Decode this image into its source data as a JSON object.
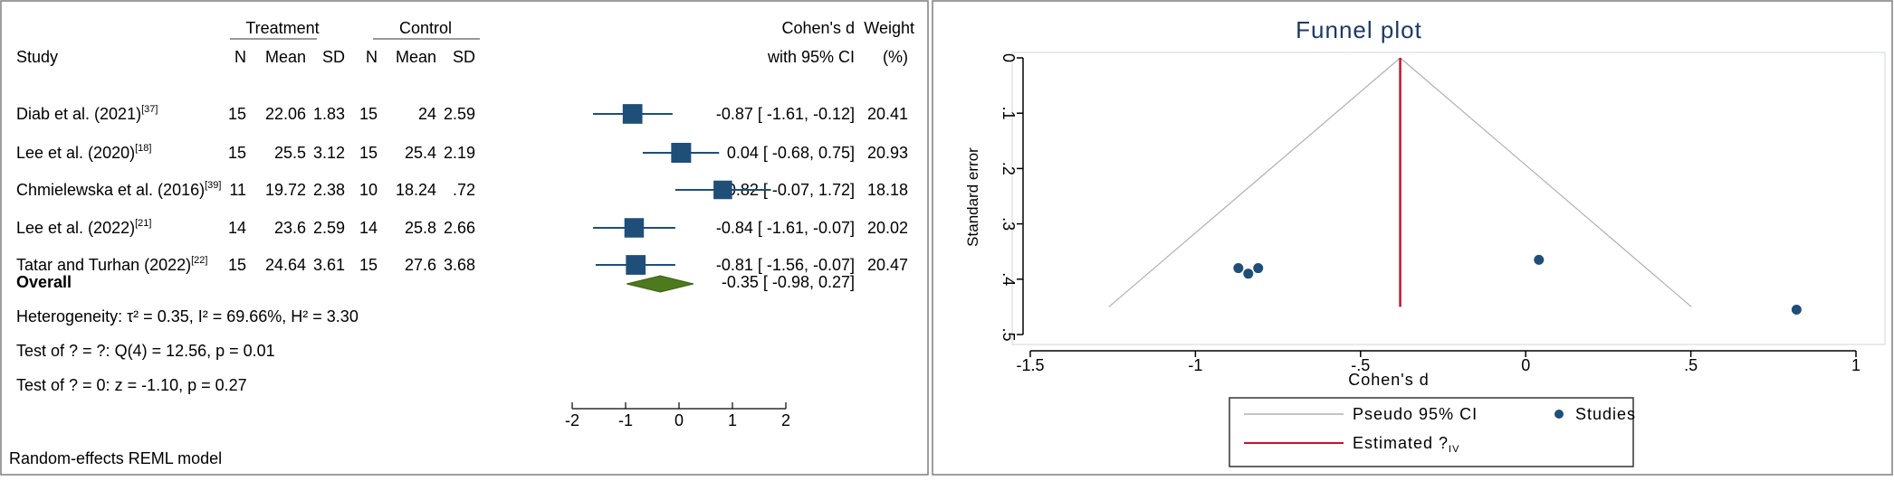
{
  "forest": {
    "headers": {
      "treatment": "Treatment",
      "control": "Control",
      "study": "Study",
      "n": "N",
      "mean": "Mean",
      "sd": "SD",
      "effect_line1": "Cohen's d",
      "effect_line2": "with 95% CI",
      "weight_line1": "Weight",
      "weight_line2": "(%)"
    },
    "overall_label": "Overall",
    "overall_ci_text": "-0.35 [ -0.98,  0.27]",
    "heterogeneity": "Heterogeneity: τ² = 0.35, I² = 69.66%, H² = 3.30",
    "test_theta": "Test of ? = ?: Q(4) = 12.56, p = 0.01",
    "test_zero": "Test of ? = 0: z = -1.10, p = 0.27",
    "footer": "Random-effects REML model"
  },
  "funnel": {
    "title": "Funnel plot",
    "xlabel": "Cohen's d",
    "ylabel": "Standard error",
    "legend_ci": "Pseudo 95% CI",
    "legend_studies": "Studies",
    "legend_estimated": "Estimated ?",
    "legend_estimated_sub": "IV"
  },
  "chart_data": [
    {
      "type": "forest",
      "studies": [
        {
          "name": "Diab et al. (2021)",
          "ref": "[37]",
          "t_n": "15",
          "t_mean": "22.06",
          "t_sd": "1.83",
          "c_n": "15",
          "c_mean": "24",
          "c_sd": "2.59",
          "d": -0.87,
          "lo": -1.61,
          "hi": -0.12,
          "ci_text": "-0.87 [ -1.61, -0.12]",
          "weight": "20.41"
        },
        {
          "name": "Lee et al. (2020)",
          "ref": "[18]",
          "t_n": "15",
          "t_mean": "25.5",
          "t_sd": "3.12",
          "c_n": "15",
          "c_mean": "25.4",
          "c_sd": "2.19",
          "d": 0.04,
          "lo": -0.68,
          "hi": 0.75,
          "ci_text": "0.04 [ -0.68,  0.75]",
          "weight": "20.93"
        },
        {
          "name": "Chmielewska et al. (2016)",
          "ref": "[39]",
          "t_n": "11",
          "t_mean": "19.72",
          "t_sd": "2.38",
          "c_n": "10",
          "c_mean": "18.24",
          "c_sd": ".72",
          "d": 0.82,
          "lo": -0.07,
          "hi": 1.72,
          "ci_text": "0.82 [ -0.07,  1.72]",
          "weight": "18.18"
        },
        {
          "name": "Lee et al. (2022)",
          "ref": "[21]",
          "t_n": "14",
          "t_mean": "23.6",
          "t_sd": "2.59",
          "c_n": "14",
          "c_mean": "25.8",
          "c_sd": "2.66",
          "d": -0.84,
          "lo": -1.61,
          "hi": -0.07,
          "ci_text": "-0.84 [ -1.61, -0.07]",
          "weight": "20.02"
        },
        {
          "name": "Tatar and Turhan (2022)",
          "ref": "[22]",
          "t_n": "15",
          "t_mean": "24.64",
          "t_sd": "3.61",
          "c_n": "15",
          "c_mean": "27.6",
          "c_sd": "3.68",
          "d": -0.81,
          "lo": -1.56,
          "hi": -0.07,
          "ci_text": "-0.81 [ -1.56, -0.07]",
          "weight": "20.47"
        }
      ],
      "overall": {
        "d": -0.35,
        "lo": -0.98,
        "hi": 0.27
      },
      "xlim": [
        -2,
        2
      ],
      "xticks": [
        -2,
        -1,
        0,
        1,
        2
      ]
    },
    {
      "type": "scatter",
      "title": "Funnel plot",
      "xlabel": "Cohen's d",
      "ylabel": "Standard error",
      "xlim": [
        -1.5,
        1
      ],
      "ylim": [
        0,
        0.5
      ],
      "xticks": [
        -1.5,
        -1,
        -0.5,
        0,
        0.5,
        1
      ],
      "xtick_labels": [
        "-1.5",
        "-1",
        "-.5",
        "0",
        ".5",
        "1"
      ],
      "yticks": [
        0,
        0.1,
        0.2,
        0.3,
        0.4,
        0.5
      ],
      "ytick_labels": [
        "0",
        ".1",
        ".2",
        ".3",
        ".4",
        ".5"
      ],
      "y_reversed": true,
      "estimate": -0.38,
      "pseudo_ci_max_se": 0.45,
      "points": [
        {
          "x": -0.87,
          "y": 0.38
        },
        {
          "x": -0.84,
          "y": 0.39
        },
        {
          "x": -0.81,
          "y": 0.38
        },
        {
          "x": 0.04,
          "y": 0.365
        },
        {
          "x": 0.82,
          "y": 0.455
        }
      ],
      "colors": {
        "points": "#1f4e79",
        "estimate": "#c8102e",
        "pseudo_ci": "#b0b0b0"
      }
    }
  ]
}
